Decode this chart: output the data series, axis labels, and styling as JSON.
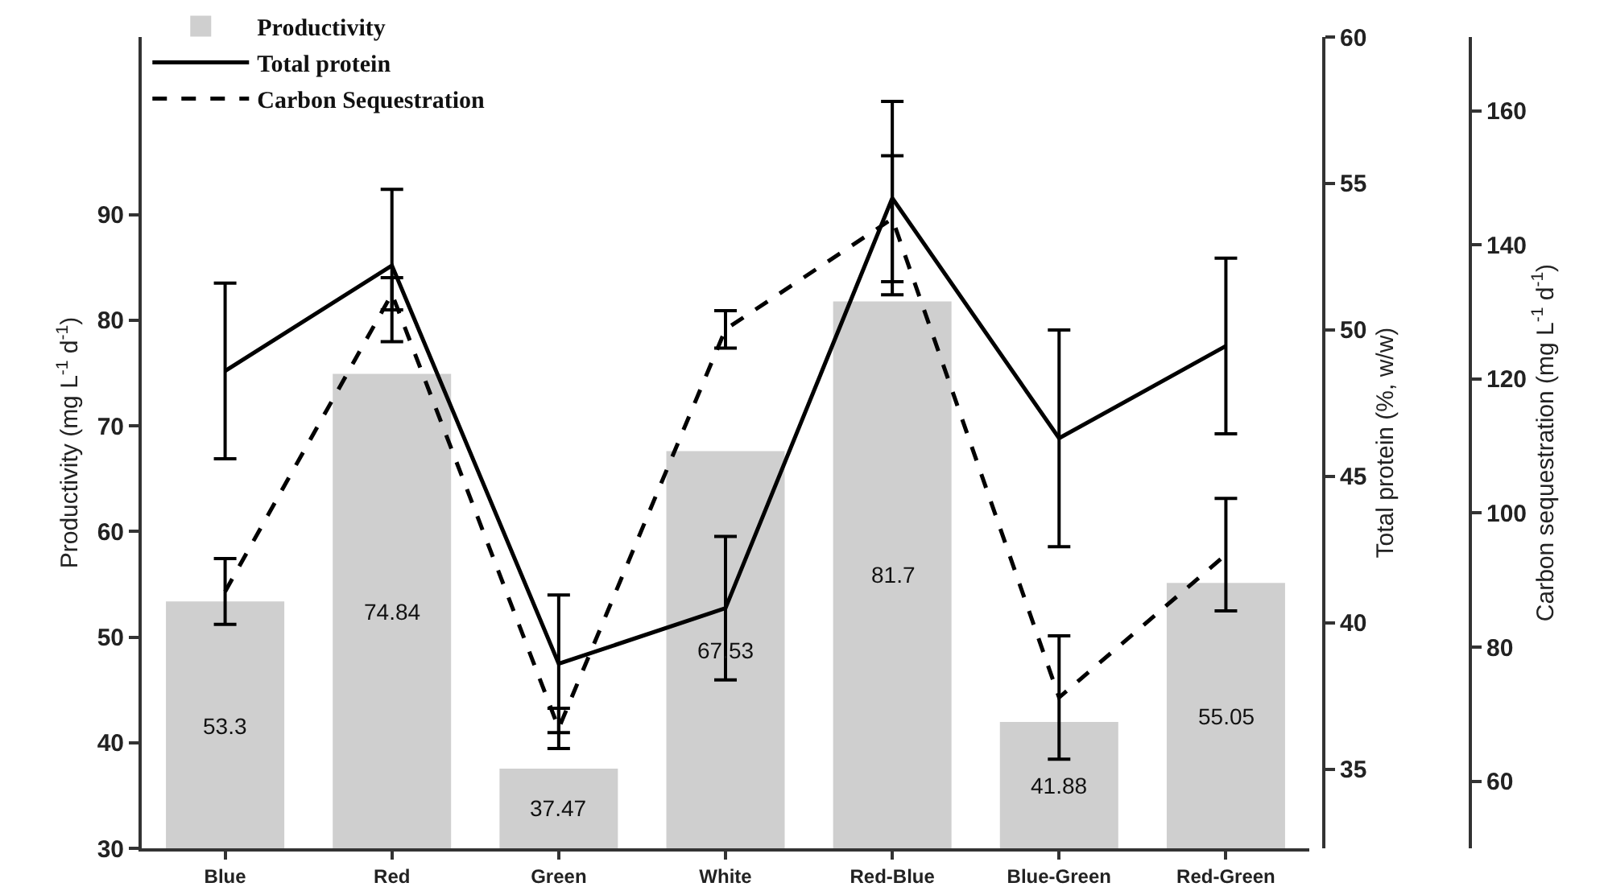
{
  "chart_data": {
    "type": "bar",
    "categories": [
      "Blue",
      "Red",
      "Green",
      "White",
      "Red-Blue",
      "Blue-Green",
      "Red-Green"
    ],
    "ylabel": "Productivity (mg L$^{-1}$ d$^{-1}$)",
    "y2label": "Total protein (%, w/w)",
    "y3label": "Carbon sequestration (mg L$^{-1}$ d$^{-1}$)",
    "series": [
      {
        "name": "Productivity",
        "color": "#cfcfcf",
        "values": [
          53.3,
          74.84,
          37.47,
          67.53,
          81.7,
          41.88,
          55.05
        ],
        "value_labels": [
          "53.3",
          "74.84",
          "37.47",
          "67.53",
          "81.7",
          "41.88",
          "55.05"
        ]
      },
      {
        "name": "Total protein",
        "type": "line",
        "axis": "y2",
        "color": "#000000",
        "line_style": "solid",
        "values": [
          48.6,
          52.2,
          38.6,
          40.5,
          54.5,
          46.3,
          49.45
        ],
        "errors": [
          3.0,
          2.6,
          2.35,
          2.45,
          3.3,
          3.7,
          3.0
        ]
      },
      {
        "name": "Carbon Sequestration",
        "type": "line",
        "axis": "y3",
        "color": "#000000",
        "line_style": "dashed",
        "values": [
          88.3,
          132.7,
          67.9,
          127.4,
          143.9,
          72.5,
          93.8
        ],
        "errors": [
          4.9,
          2.4,
          3.0,
          2.8,
          9.4,
          9.2,
          8.4
        ]
      }
    ],
    "ylim": [
      30,
      106.8
    ],
    "yticks": [
      30,
      40,
      50,
      60,
      70,
      80,
      90
    ],
    "y2lim": [
      32.3,
      60
    ],
    "y2ticks": [
      35,
      40,
      45,
      50,
      55,
      60
    ],
    "y3lim": [
      50,
      171
    ],
    "y3ticks": [
      60,
      80,
      100,
      120,
      140,
      160
    ],
    "legend": "top left",
    "marker": "none"
  }
}
